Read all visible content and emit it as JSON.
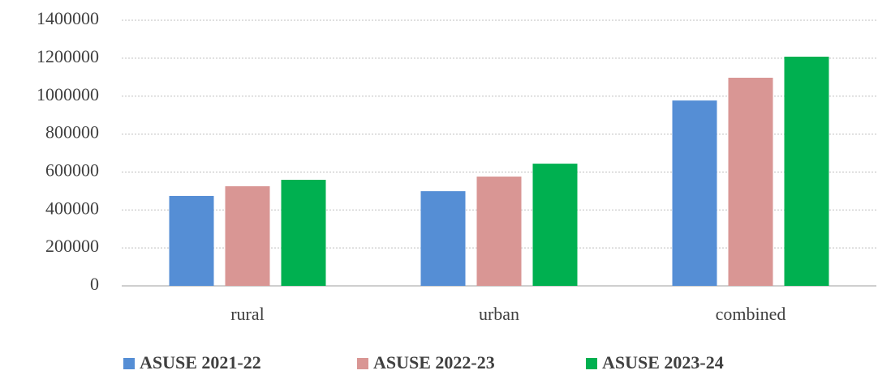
{
  "chart_data": {
    "type": "bar",
    "categories": [
      "rural",
      "urban",
      "combined"
    ],
    "series": [
      {
        "name": "ASUSE 2021-22",
        "color": "#558ed5",
        "values": [
          474000,
          499000,
          977000
        ]
      },
      {
        "name": "ASUSE 2022-23",
        "color": "#d99694",
        "values": [
          525000,
          576000,
          1097000
        ]
      },
      {
        "name": "ASUSE 2023-24",
        "color": "#00b050",
        "values": [
          559000,
          644000,
          1208000
        ]
      }
    ],
    "ylim": [
      0,
      1400000
    ],
    "yticks": [
      0,
      200000,
      400000,
      600000,
      800000,
      1000000,
      1200000,
      1400000
    ],
    "grid": true,
    "legend": "bottom"
  }
}
